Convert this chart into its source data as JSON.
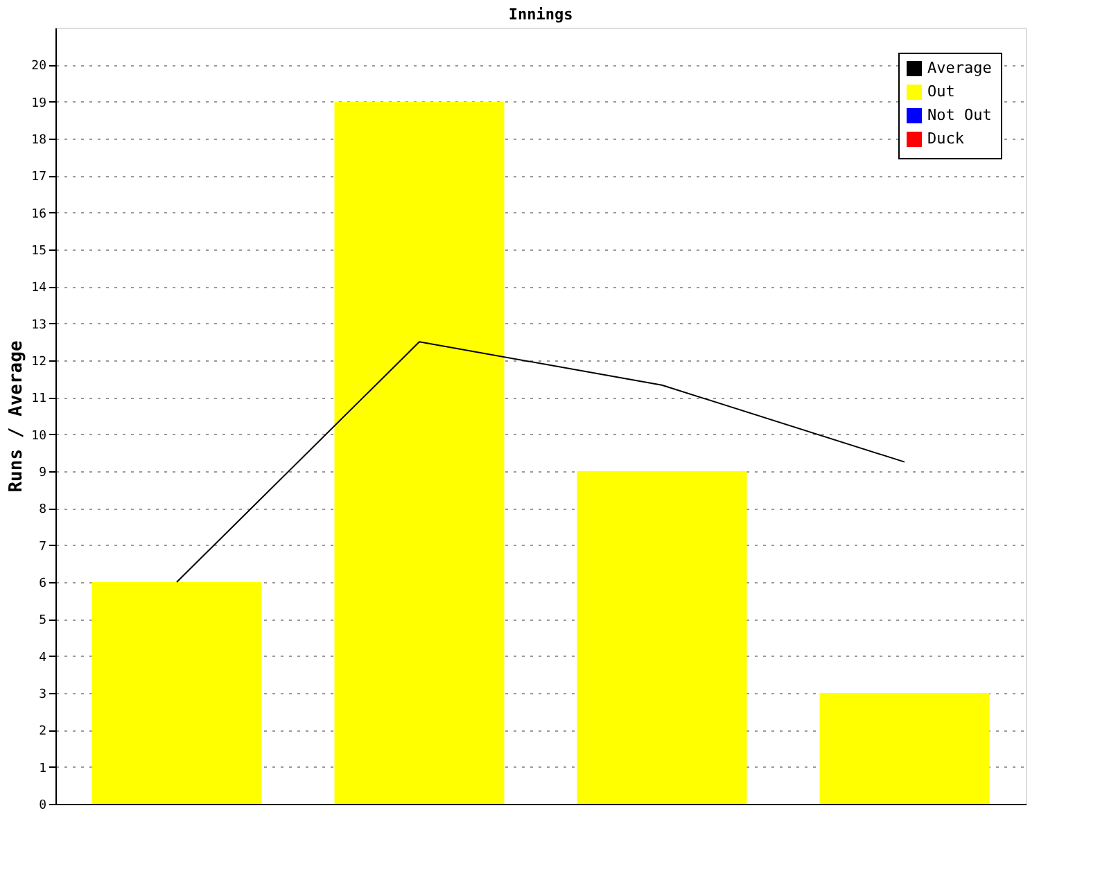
{
  "chart_data": {
    "type": "bar",
    "title": "Innings",
    "ylabel": "Runs / Average",
    "categories": [
      null,
      null,
      null,
      null
    ],
    "series": [
      {
        "name": "Average",
        "type": "line",
        "color": "#000000",
        "values": [
          6,
          12.5,
          11.33,
          9.25
        ]
      },
      {
        "name": "Out",
        "color": "#ffff00",
        "values": [
          6,
          19,
          9,
          3
        ]
      },
      {
        "name": "Not Out",
        "color": "#0000ff",
        "values": [
          null,
          null,
          null,
          null
        ]
      },
      {
        "name": "Duck",
        "color": "#ff0000",
        "values": [
          null,
          null,
          null,
          null
        ]
      }
    ],
    "ylim": [
      0,
      21
    ],
    "yticks": [
      0,
      1,
      2,
      3,
      4,
      5,
      6,
      7,
      8,
      9,
      10,
      11,
      12,
      13,
      14,
      15,
      16,
      17,
      18,
      19,
      20
    ],
    "grid": "y",
    "legend": "top right",
    "tick_labels": "y"
  }
}
